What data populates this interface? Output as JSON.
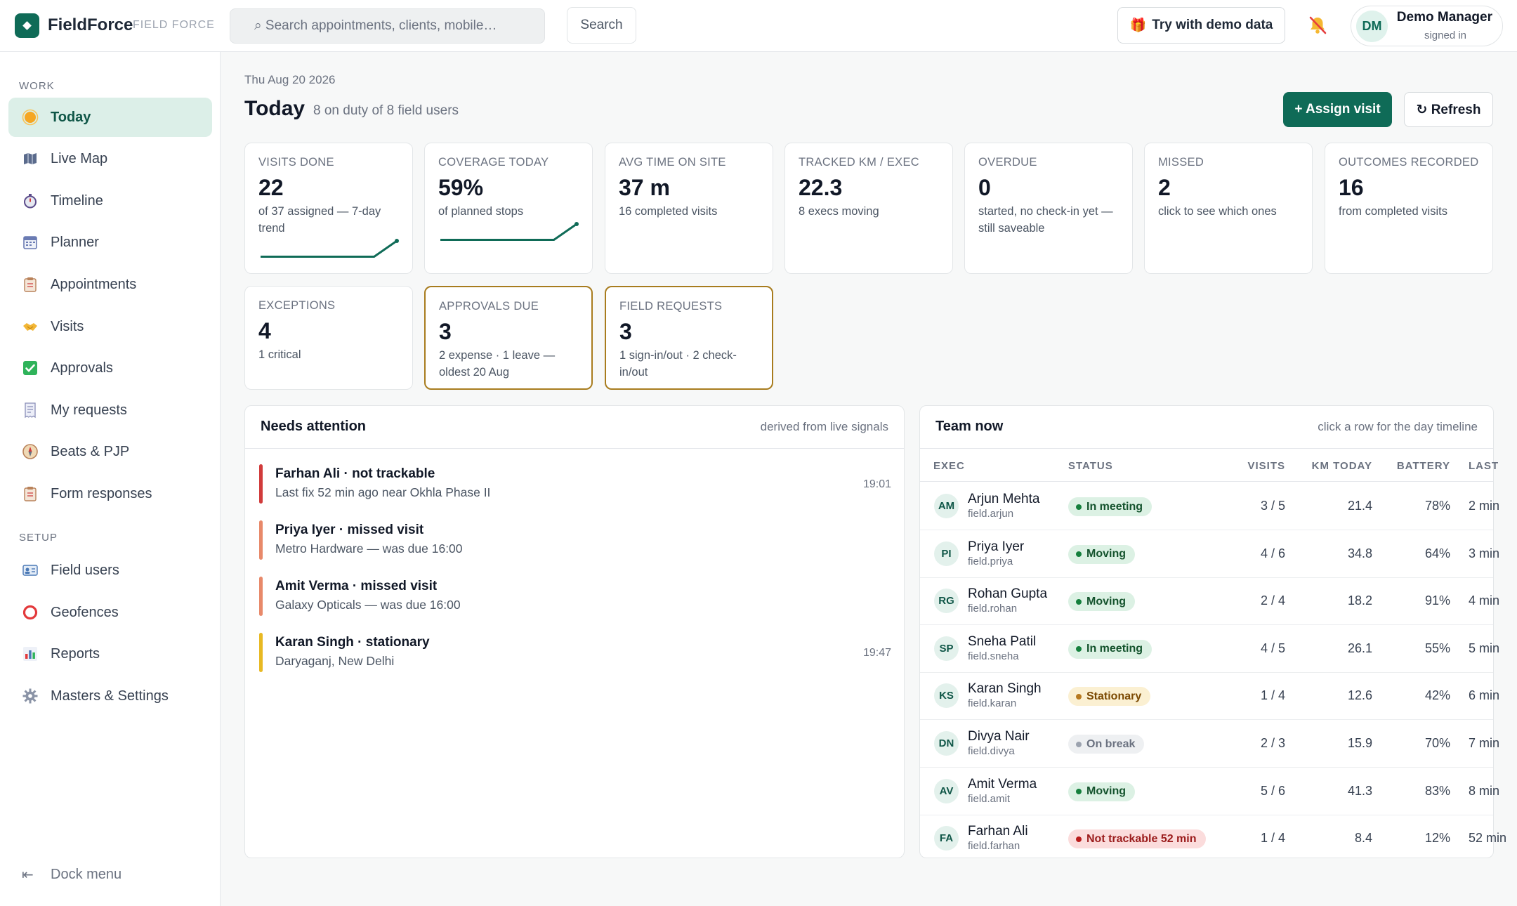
{
  "brand": {
    "name": "FieldForce",
    "sub": "FIELD FORCE"
  },
  "search": {
    "placeholder": "⌕ Search appointments, clients, mobile…",
    "button": "Search"
  },
  "demo_button": "Try with demo data",
  "user": {
    "initials": "DM",
    "name": "Demo Manager",
    "status": "signed in"
  },
  "sidebar": {
    "work_label": "WORK",
    "setup_label": "SETUP",
    "work_items": [
      {
        "label": "Today",
        "icon": "sun-icon"
      },
      {
        "label": "Live Map",
        "icon": "map-icon"
      },
      {
        "label": "Timeline",
        "icon": "stopwatch-icon"
      },
      {
        "label": "Planner",
        "icon": "calendar-icon"
      },
      {
        "label": "Appointments",
        "icon": "clipboard-icon"
      },
      {
        "label": "Visits",
        "icon": "handshake-icon"
      },
      {
        "label": "Approvals",
        "icon": "check-box-icon"
      },
      {
        "label": "My requests",
        "icon": "receipt-icon"
      },
      {
        "label": "Beats & PJP",
        "icon": "compass-icon"
      },
      {
        "label": "Form responses",
        "icon": "clipboard-icon"
      }
    ],
    "setup_items": [
      {
        "label": "Field users",
        "icon": "id-card-icon"
      },
      {
        "label": "Geofences",
        "icon": "ring-icon"
      },
      {
        "label": "Reports",
        "icon": "bar-chart-icon"
      },
      {
        "label": "Masters & Settings",
        "icon": "gear-icon"
      }
    ],
    "dock": "Dock menu"
  },
  "header": {
    "date": "Thu Aug 20 2026",
    "title": "Today",
    "subtitle": "8 on duty of 8 field users",
    "assign": "+ Assign visit",
    "refresh": "↻ Refresh"
  },
  "kpis": [
    {
      "label": "VISITS DONE",
      "value": "22",
      "sub": "of 37 assigned — 7-day trend",
      "trend": [
        2,
        2,
        2,
        2,
        2,
        2,
        8
      ]
    },
    {
      "label": "COVERAGE TODAY",
      "value": "59%",
      "sub": "of planned stops",
      "trend": [
        2,
        2,
        2,
        2,
        2,
        2,
        8
      ]
    },
    {
      "label": "AVG TIME ON SITE",
      "value": "37 m",
      "sub": "16 completed visits"
    },
    {
      "label": "TRACKED KM / EXEC",
      "value": "22.3",
      "sub": "8 execs moving"
    },
    {
      "label": "OVERDUE",
      "value": "0",
      "sub": "started, no check-in yet — still saveable"
    },
    {
      "label": "MISSED",
      "value": "2",
      "sub": "click to see which ones"
    },
    {
      "label": "OUTCOMES RECORDED",
      "value": "16",
      "sub": "from completed visits"
    },
    {
      "label": "EXCEPTIONS",
      "value": "4",
      "sub": "1 critical"
    },
    {
      "label": "APPROVALS DUE",
      "value": "3",
      "sub": "2 expense · 1 leave — oldest 20 Aug"
    },
    {
      "label": "FIELD REQUESTS",
      "value": "3",
      "sub": "1 sign-in/out · 2 check-in/out"
    }
  ],
  "attention": {
    "title": "Needs attention",
    "hint": "derived from live signals",
    "items": [
      {
        "title": "Farhan Ali · not trackable",
        "sub": "Last fix 52 min ago near Okhla Phase II",
        "time": "19:01",
        "color": "#d13b3b"
      },
      {
        "title": "Priya Iyer · missed visit",
        "sub": "Metro Hardware — was due 16:00",
        "time": "",
        "color": "#e8896a"
      },
      {
        "title": "Amit Verma · missed visit",
        "sub": "Galaxy Opticals — was due 16:00",
        "time": "",
        "color": "#e8896a"
      },
      {
        "title": "Karan Singh · stationary",
        "sub": "Daryaganj, New Delhi",
        "time": "19:47",
        "color": "#e8b923"
      }
    ]
  },
  "team": {
    "title": "Team now",
    "hint": "click a row for the day timeline",
    "headers": {
      "exec": "EXEC",
      "status": "STATUS",
      "visits": "VISITS",
      "km": "KM TODAY",
      "battery": "BATTERY",
      "last": "LAST"
    },
    "rows": [
      {
        "initials": "AM",
        "name": "Arjun Mehta",
        "handle": "field.arjun",
        "status": "In meeting",
        "tone": "green",
        "visits": "3 / 5",
        "km": "21.4",
        "battery": "78%",
        "last": "2 min"
      },
      {
        "initials": "PI",
        "name": "Priya Iyer",
        "handle": "field.priya",
        "status": "Moving",
        "tone": "green",
        "visits": "4 / 6",
        "km": "34.8",
        "battery": "64%",
        "last": "3 min"
      },
      {
        "initials": "RG",
        "name": "Rohan Gupta",
        "handle": "field.rohan",
        "status": "Moving",
        "tone": "green",
        "visits": "2 / 4",
        "km": "18.2",
        "battery": "91%",
        "last": "4 min"
      },
      {
        "initials": "SP",
        "name": "Sneha Patil",
        "handle": "field.sneha",
        "status": "In meeting",
        "tone": "green",
        "visits": "4 / 5",
        "km": "26.1",
        "battery": "55%",
        "last": "5 min"
      },
      {
        "initials": "KS",
        "name": "Karan Singh",
        "handle": "field.karan",
        "status": "Stationary",
        "tone": "amber",
        "visits": "1 / 4",
        "km": "12.6",
        "battery": "42%",
        "last": "6 min"
      },
      {
        "initials": "DN",
        "name": "Divya Nair",
        "handle": "field.divya",
        "status": "On break",
        "tone": "gray",
        "visits": "2 / 3",
        "km": "15.9",
        "battery": "70%",
        "last": "7 min"
      },
      {
        "initials": "AV",
        "name": "Amit Verma",
        "handle": "field.amit",
        "status": "Moving",
        "tone": "green",
        "visits": "5 / 6",
        "km": "41.3",
        "battery": "83%",
        "last": "8 min"
      },
      {
        "initials": "FA",
        "name": "Farhan Ali",
        "handle": "field.farhan",
        "status": "Not trackable 52 min",
        "tone": "red",
        "visits": "1 / 4",
        "km": "8.4",
        "battery": "12%",
        "last": "52 min"
      }
    ]
  },
  "colors": {
    "accent": "#0f6b57",
    "active_nav_bg": "#dcefe8",
    "gold_border": "#a87c1e"
  }
}
